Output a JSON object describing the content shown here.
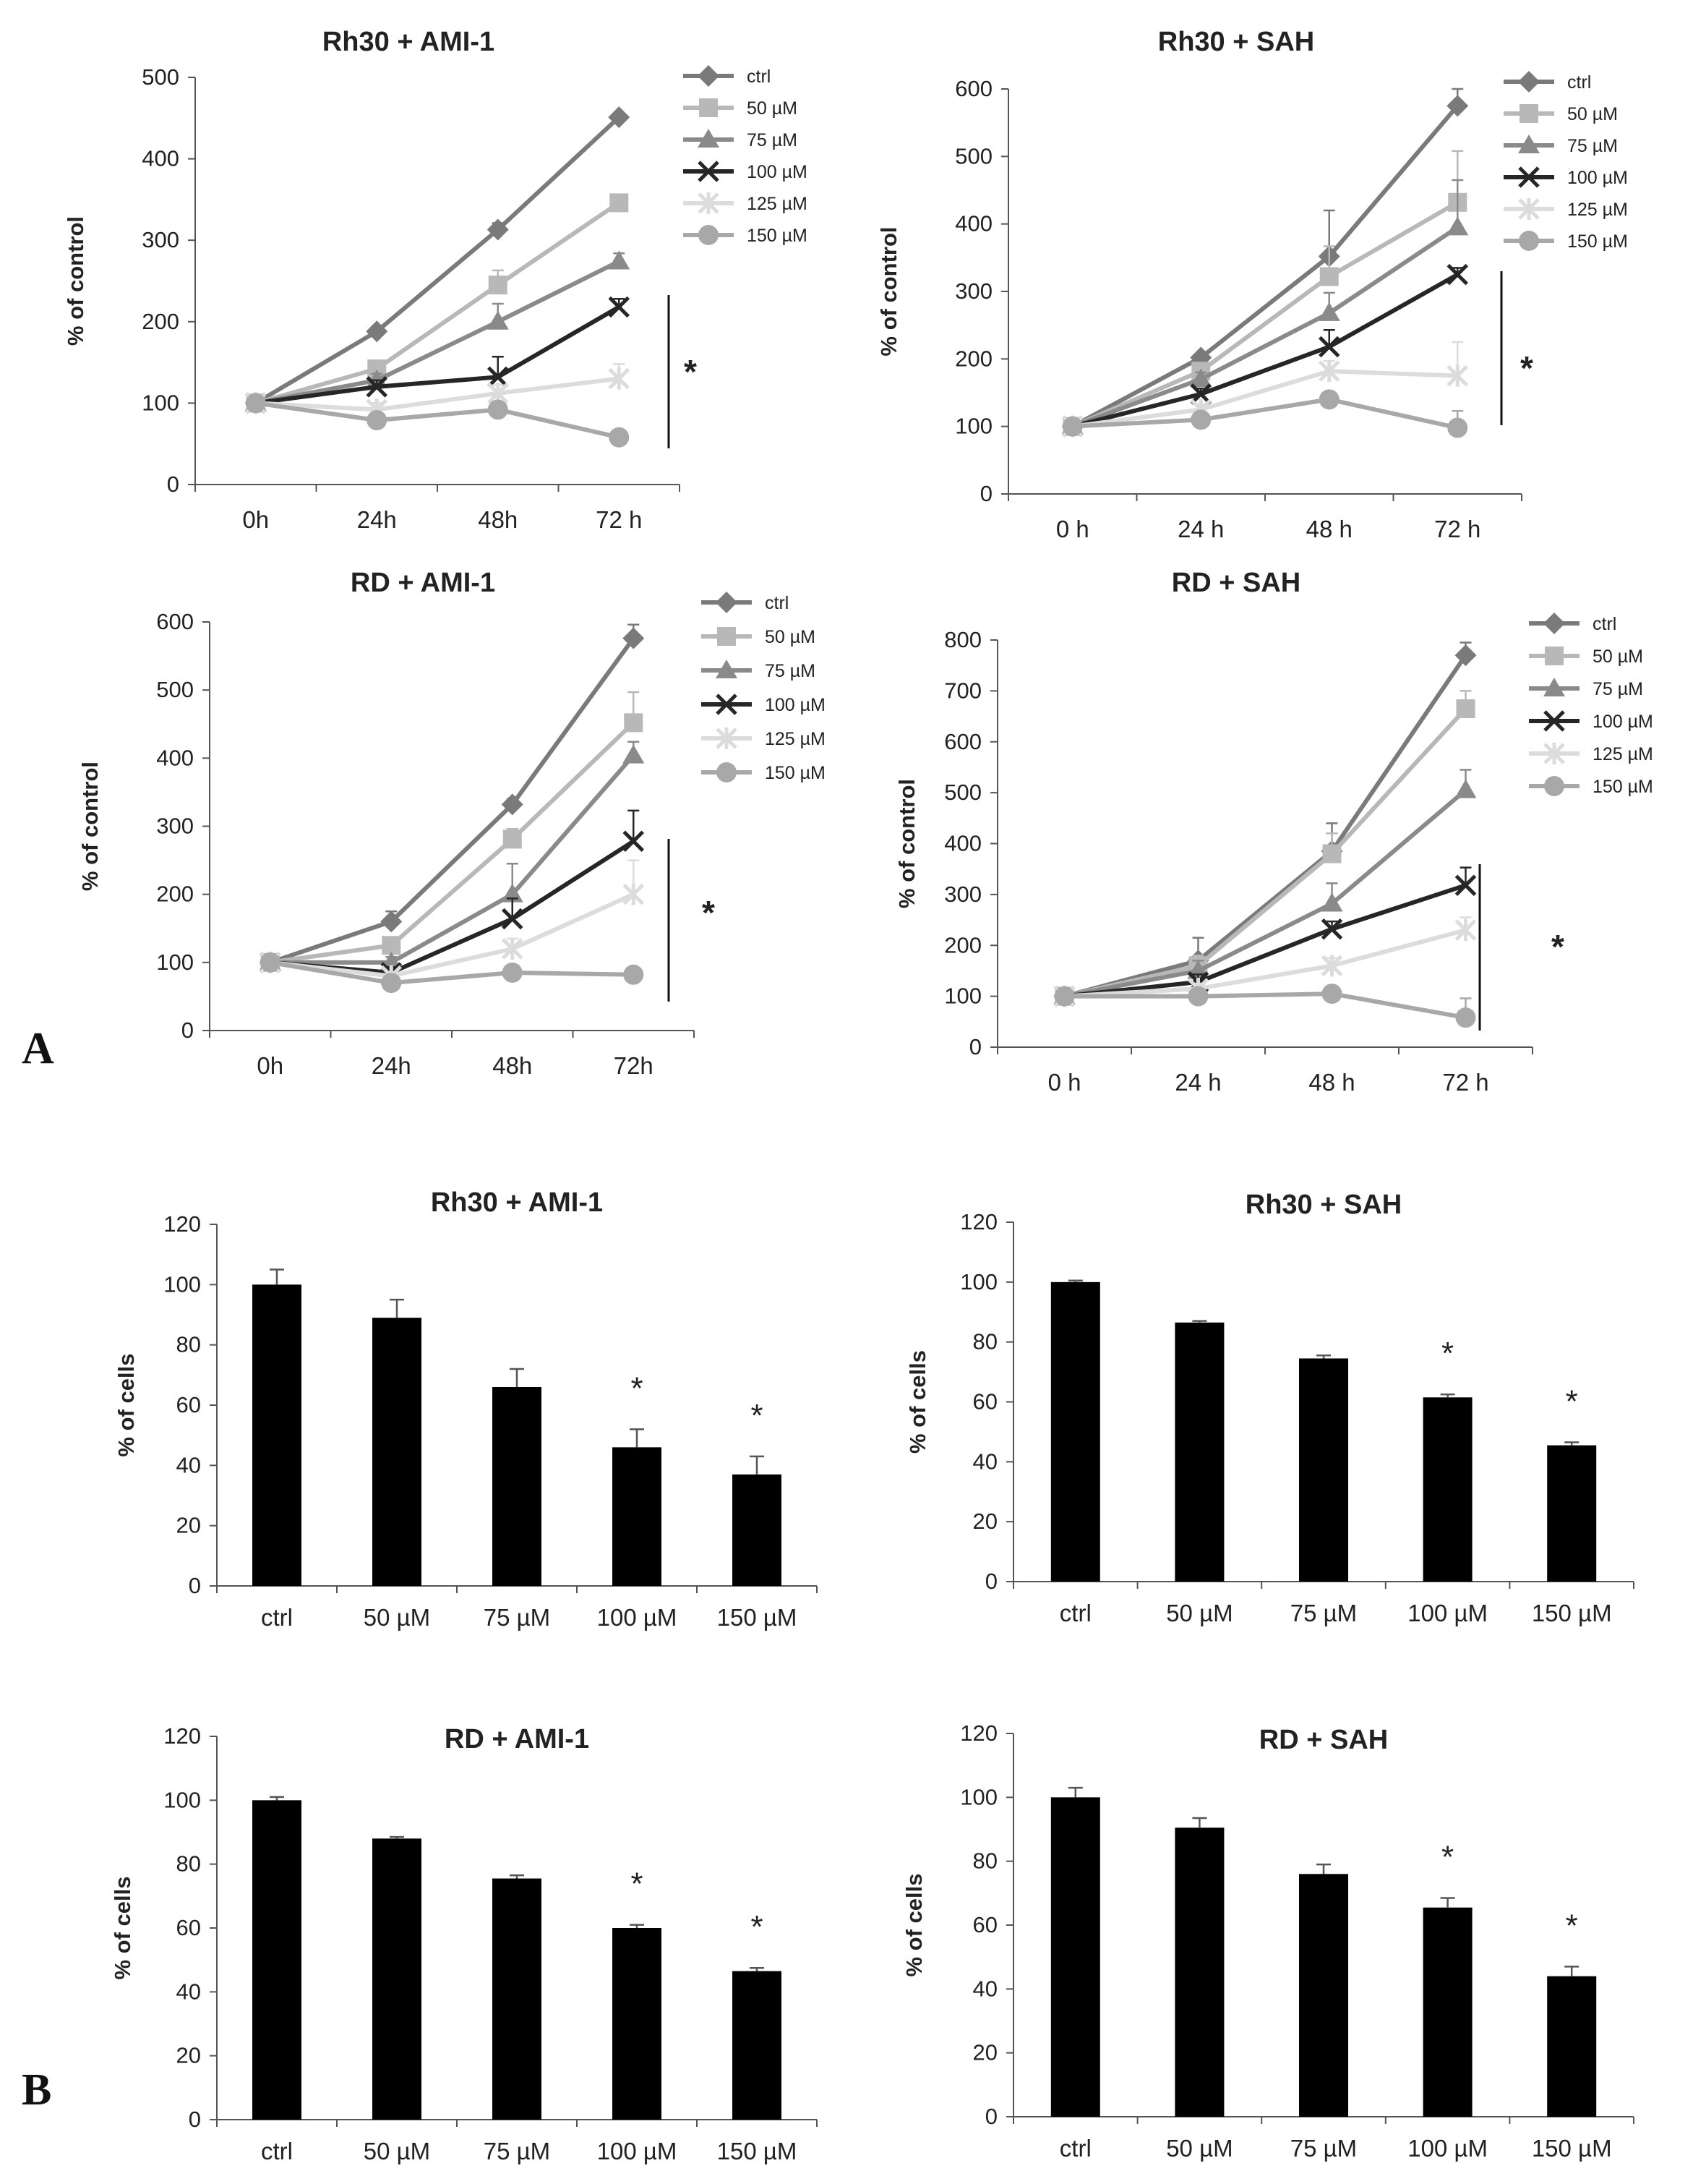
{
  "panel_labels": {
    "a": "A",
    "b": "B"
  },
  "chart_data": [
    {
      "type": "line",
      "title": "Rh30 + AMI-1",
      "xlabel": "",
      "ylabel": "% of control",
      "categories": [
        "0h",
        "24h",
        "48h",
        "72 h"
      ],
      "ylim": [
        0,
        500
      ],
      "yticks": [
        0,
        100,
        200,
        300,
        400,
        500
      ],
      "significance": "*",
      "series": [
        {
          "name": "ctrl",
          "color": "#7a7a7a",
          "marker": "diamond",
          "values": [
            100,
            188,
            313,
            451
          ],
          "errors": [
            0,
            5,
            8,
            5
          ]
        },
        {
          "name": "50 µM",
          "color": "#b8b8b8",
          "marker": "square",
          "values": [
            100,
            142,
            245,
            346
          ],
          "errors": [
            0,
            10,
            18,
            8
          ]
        },
        {
          "name": "75 µM",
          "color": "#8a8a8a",
          "marker": "triangle",
          "values": [
            100,
            128,
            200,
            274
          ],
          "errors": [
            0,
            8,
            22,
            10
          ]
        },
        {
          "name": "100 µM",
          "color": "#262626",
          "marker": "x",
          "values": [
            100,
            120,
            132,
            218
          ],
          "errors": [
            0,
            8,
            25,
            10
          ]
        },
        {
          "name": "125 µM",
          "color": "#dcdcdc",
          "marker": "star",
          "values": [
            100,
            92,
            112,
            130
          ],
          "errors": [
            0,
            8,
            10,
            18
          ]
        },
        {
          "name": "150 µM",
          "color": "#a8a8a8",
          "marker": "circle",
          "values": [
            100,
            79,
            92,
            58
          ],
          "errors": [
            0,
            6,
            8,
            6
          ]
        }
      ]
    },
    {
      "type": "line",
      "title": "Rh30 + SAH",
      "xlabel": "",
      "ylabel": "% of control",
      "categories": [
        "0 h",
        "24 h",
        "48 h",
        "72 h"
      ],
      "ylim": [
        0,
        600
      ],
      "yticks": [
        0,
        100,
        200,
        300,
        400,
        500,
        600
      ],
      "significance": "*",
      "series": [
        {
          "name": "ctrl",
          "color": "#7a7a7a",
          "marker": "diamond",
          "values": [
            100,
            202,
            352,
            575
          ],
          "errors": [
            0,
            5,
            68,
            25
          ]
        },
        {
          "name": "50 µM",
          "color": "#b8b8b8",
          "marker": "square",
          "values": [
            100,
            182,
            322,
            432
          ],
          "errors": [
            0,
            10,
            45,
            76
          ]
        },
        {
          "name": "75 µM",
          "color": "#8a8a8a",
          "marker": "triangle",
          "values": [
            100,
            170,
            268,
            395
          ],
          "errors": [
            0,
            10,
            30,
            70
          ]
        },
        {
          "name": "100 µM",
          "color": "#262626",
          "marker": "x",
          "values": [
            100,
            148,
            218,
            325
          ],
          "errors": [
            0,
            8,
            25,
            10
          ]
        },
        {
          "name": "125 µM",
          "color": "#dcdcdc",
          "marker": "star",
          "values": [
            100,
            125,
            182,
            175
          ],
          "errors": [
            0,
            8,
            15,
            50
          ]
        },
        {
          "name": "150 µM",
          "color": "#a8a8a8",
          "marker": "circle",
          "values": [
            100,
            110,
            140,
            98
          ],
          "errors": [
            0,
            6,
            8,
            25
          ]
        }
      ]
    },
    {
      "type": "line",
      "title": "RD + AMI-1",
      "xlabel": "",
      "ylabel": "% of control",
      "categories": [
        "0h",
        "24h",
        "48h",
        "72h"
      ],
      "ylim": [
        0,
        600
      ],
      "yticks": [
        0,
        100,
        200,
        300,
        400,
        500,
        600
      ],
      "significance": "*",
      "series": [
        {
          "name": "ctrl",
          "color": "#7a7a7a",
          "marker": "diamond",
          "values": [
            100,
            160,
            332,
            576
          ],
          "errors": [
            0,
            15,
            8,
            20
          ]
        },
        {
          "name": "50 µM",
          "color": "#b8b8b8",
          "marker": "square",
          "values": [
            100,
            125,
            281,
            452
          ],
          "errors": [
            0,
            10,
            15,
            45
          ]
        },
        {
          "name": "75 µM",
          "color": "#8a8a8a",
          "marker": "triangle",
          "values": [
            100,
            100,
            200,
            404
          ],
          "errors": [
            0,
            8,
            45,
            20
          ]
        },
        {
          "name": "100 µM",
          "color": "#262626",
          "marker": "x",
          "values": [
            100,
            85,
            164,
            278
          ],
          "errors": [
            0,
            8,
            30,
            45
          ]
        },
        {
          "name": "125 µM",
          "color": "#dcdcdc",
          "marker": "star",
          "values": [
            100,
            80,
            120,
            200
          ],
          "errors": [
            0,
            6,
            15,
            50
          ]
        },
        {
          "name": "150 µM",
          "color": "#a8a8a8",
          "marker": "circle",
          "values": [
            100,
            70,
            85,
            82
          ],
          "errors": [
            0,
            5,
            6,
            6
          ]
        }
      ]
    },
    {
      "type": "line",
      "title": "RD + SAH",
      "xlabel": "",
      "ylabel": "% of control",
      "categories": [
        "0 h",
        "24 h",
        "48 h",
        "72 h"
      ],
      "ylim": [
        0,
        800
      ],
      "yticks": [
        0,
        100,
        200,
        300,
        400,
        500,
        600,
        700,
        800
      ],
      "significance": "*",
      "series": [
        {
          "name": "ctrl",
          "color": "#7a7a7a",
          "marker": "diamond",
          "values": [
            100,
            170,
            385,
            770
          ],
          "errors": [
            0,
            45,
            55,
            25
          ]
        },
        {
          "name": "50 µM",
          "color": "#b8b8b8",
          "marker": "square",
          "values": [
            100,
            160,
            380,
            665
          ],
          "errors": [
            0,
            20,
            40,
            35
          ]
        },
        {
          "name": "75 µM",
          "color": "#8a8a8a",
          "marker": "triangle",
          "values": [
            100,
            150,
            282,
            505
          ],
          "errors": [
            0,
            20,
            40,
            40
          ]
        },
        {
          "name": "100 µM",
          "color": "#262626",
          "marker": "x",
          "values": [
            100,
            128,
            232,
            318
          ],
          "errors": [
            0,
            15,
            15,
            35
          ]
        },
        {
          "name": "125 µM",
          "color": "#dcdcdc",
          "marker": "star",
          "values": [
            100,
            115,
            160,
            230
          ],
          "errors": [
            0,
            10,
            15,
            25
          ]
        },
        {
          "name": "150 µM",
          "color": "#a8a8a8",
          "marker": "circle",
          "values": [
            100,
            100,
            105,
            58
          ],
          "errors": [
            0,
            8,
            10,
            38
          ]
        }
      ]
    },
    {
      "type": "bar",
      "title": "Rh30 + AMI-1",
      "ylabel": "% of cells",
      "categories": [
        "ctrl",
        "50  µM",
        "75  µM",
        "100  µM",
        "150 µM"
      ],
      "values": [
        100,
        89,
        66,
        46,
        37
      ],
      "errors": [
        5,
        6,
        6,
        6,
        6
      ],
      "significant": [
        false,
        false,
        false,
        true,
        true
      ],
      "significance": "*",
      "ylim": [
        0,
        120
      ],
      "yticks": [
        0,
        20,
        40,
        60,
        80,
        100,
        120
      ]
    },
    {
      "type": "bar",
      "title": "Rh30 + SAH",
      "ylabel": "% of cells",
      "categories": [
        "ctrl",
        "50  µM",
        "75  µM",
        "100  µM",
        "150 µM"
      ],
      "values": [
        100,
        86.5,
        74.5,
        61.5,
        45.5
      ],
      "errors": [
        0.5,
        0.5,
        1,
        1,
        1
      ],
      "significant": [
        false,
        false,
        false,
        true,
        true
      ],
      "significance": "*",
      "ylim": [
        0,
        120
      ],
      "yticks": [
        0,
        20,
        40,
        60,
        80,
        100,
        120
      ]
    },
    {
      "type": "bar",
      "title": "RD + AMI-1",
      "ylabel": "% of cells",
      "categories": [
        "ctrl",
        "50  µM",
        "75  µM",
        "100  µM",
        "150 µM"
      ],
      "values": [
        100,
        88,
        75.5,
        60,
        46.5
      ],
      "errors": [
        1,
        0.5,
        1,
        1,
        1
      ],
      "significant": [
        false,
        false,
        false,
        true,
        true
      ],
      "significance": "*",
      "ylim": [
        0,
        120
      ],
      "yticks": [
        0,
        20,
        40,
        60,
        80,
        100,
        120
      ]
    },
    {
      "type": "bar",
      "title": "RD + SAH",
      "ylabel": "% of cells",
      "categories": [
        "ctrl",
        "50  µM",
        "75  µM",
        "100  µM",
        "150 µM"
      ],
      "values": [
        100,
        90.5,
        76,
        65.5,
        44
      ],
      "errors": [
        3,
        3,
        3,
        3,
        3
      ],
      "significant": [
        false,
        false,
        false,
        true,
        true
      ],
      "significance": "*",
      "ylim": [
        0,
        120
      ],
      "yticks": [
        0,
        20,
        40,
        60,
        80,
        100,
        120
      ]
    }
  ]
}
